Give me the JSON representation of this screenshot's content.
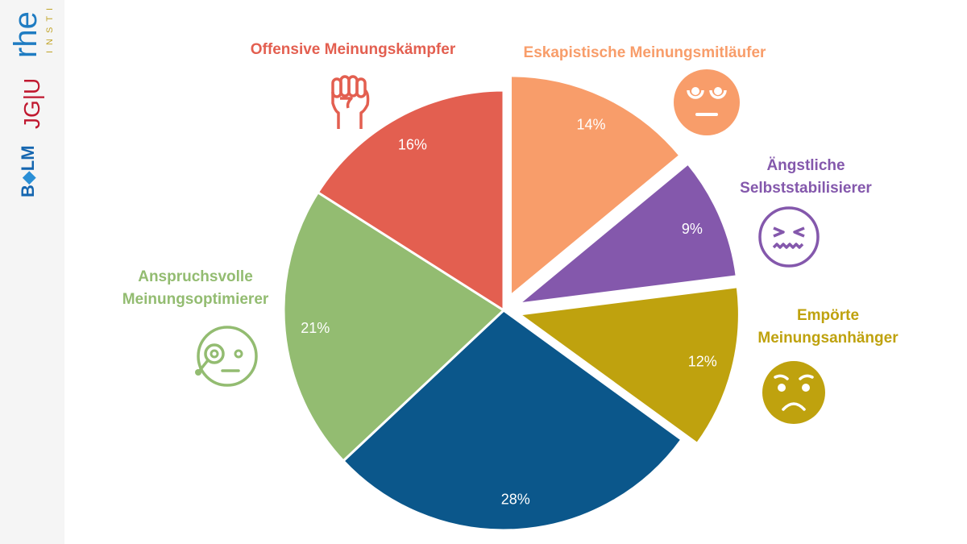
{
  "sidebar": {
    "logos": [
      "rheingold INSTITUT",
      "JG|U",
      "BLM"
    ]
  },
  "chart_data": {
    "type": "pie",
    "title": "",
    "start": "top",
    "direction": "clockwise",
    "value_format": "percent",
    "slices": [
      {
        "label_lines": [
          "Eskapistische Meinungsmitläufer"
        ],
        "value": 14,
        "display": "14%",
        "color": "#F89D6A",
        "exploded": true,
        "icon": "eye-roll-face-icon"
      },
      {
        "label_lines": [
          "Ängstliche",
          "Selbststabilisierer"
        ],
        "value": 9,
        "display": "9%",
        "color": "#8458AC",
        "exploded": true,
        "icon": "anxious-grimace-face-icon"
      },
      {
        "label_lines": [
          "Empörte",
          "Meinungsanhänger"
        ],
        "value": 12,
        "display": "12%",
        "color": "#BFA20E",
        "exploded": true,
        "icon": "frowning-face-icon"
      },
      {
        "label_lines": [],
        "value": 28,
        "display": "28%",
        "color": "#0B578B",
        "exploded": false,
        "icon": ""
      },
      {
        "label_lines": [
          "Anspruchsvolle",
          "Meinungsoptimierer"
        ],
        "value": 21,
        "display": "21%",
        "color": "#93BC71",
        "exploded": false,
        "icon": "monocle-face-icon"
      },
      {
        "label_lines": [
          "Offensive Meinungskämpfer"
        ],
        "value": 16,
        "display": "16%",
        "color": "#E35F50",
        "exploded": false,
        "icon": "raised-fist-icon"
      }
    ]
  }
}
